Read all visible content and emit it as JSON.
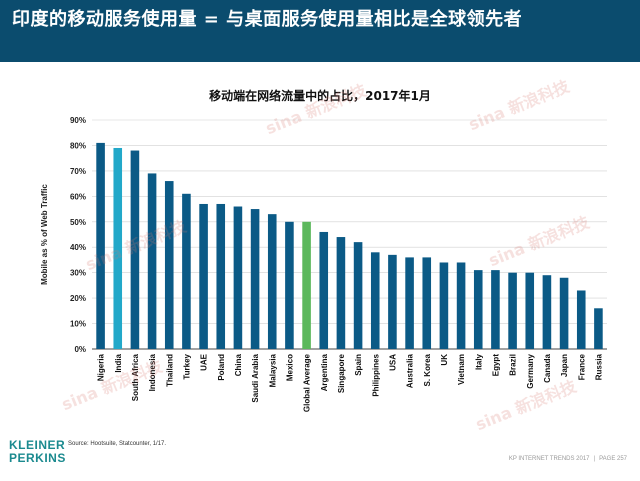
{
  "header": {
    "title": "印度的移动服务使用量 = 与桌面服务使用量相比是全球领先者"
  },
  "watermark_text": "sina 新浪科技",
  "chart_data": {
    "type": "bar",
    "title": "移动端在网络流量中的占比，2017年1月",
    "ylabel": "Mobile as % of Web Traffic",
    "xlabel": "",
    "ylim": [
      0,
      90
    ],
    "yticks": [
      "0%",
      "10%",
      "20%",
      "30%",
      "40%",
      "50%",
      "60%",
      "70%",
      "80%",
      "90%"
    ],
    "grid": true,
    "categories": [
      "Nigeria",
      "India",
      "South Africa",
      "Indonesia",
      "Thailand",
      "Turkey",
      "UAE",
      "Poland",
      "China",
      "Saudi Arabia",
      "Malaysia",
      "Mexico",
      "Global Average",
      "Argentina",
      "Singapore",
      "Spain",
      "Philippines",
      "USA",
      "Australia",
      "S. Korea",
      "UK",
      "Vietnam",
      "Italy",
      "Egypt",
      "Brazil",
      "Germany",
      "Canada",
      "Japan",
      "France",
      "Russia"
    ],
    "values": [
      81,
      79,
      78,
      69,
      66,
      61,
      57,
      57,
      56,
      55,
      53,
      50,
      50,
      46,
      44,
      42,
      38,
      37,
      36,
      36,
      34,
      34,
      31,
      31,
      30,
      30,
      29,
      28,
      23,
      16
    ],
    "bar_color": "#0b5a86",
    "highlight": {
      "India": "#22a8c9",
      "Global Average": "#5cb85c"
    }
  },
  "source": "Source: Hootsuite, Statcounter, 1/17.",
  "logo": {
    "line1": "KLEINER",
    "line2": "PERKINS"
  },
  "footer": {
    "report": "KP INTERNET TRENDS 2017",
    "separator": "|",
    "page": "PAGE 257"
  }
}
